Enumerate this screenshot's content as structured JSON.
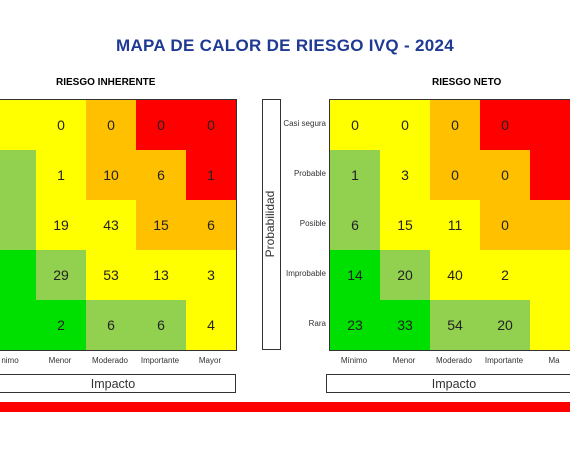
{
  "title": "MAPA DE CALOR DE RIESGO IVQ - 2024",
  "colors": {
    "green": "#00e000",
    "lightgreen": "#92d050",
    "yellow": "#ffff00",
    "orange": "#ffc000",
    "red": "#ff0000",
    "title": "#1f3a93",
    "bar": "#ff0000"
  },
  "chart_data": [
    {
      "type": "heatmap",
      "title": "RIESGO INHERENTE",
      "xlabel": "Impacto",
      "ylabel": "",
      "x_categories": [
        "Mínimo",
        "Menor",
        "Moderado",
        "Importante",
        "Mayor"
      ],
      "x_labels_visible": [
        "nimo",
        "Menor",
        "Moderado",
        "Importante",
        "Mayor"
      ],
      "y_categories": [
        "Casi segura",
        "Probable",
        "Posible",
        "Improbable",
        "Rara"
      ],
      "values": [
        [
          "",
          "0",
          "0",
          "0",
          "0"
        ],
        [
          "",
          "1",
          "10",
          "6",
          "1"
        ],
        [
          "",
          "19",
          "43",
          "15",
          "6"
        ],
        [
          "",
          "29",
          "53",
          "13",
          "3"
        ],
        [
          "",
          "2",
          "6",
          "6",
          "4"
        ]
      ],
      "colors": [
        [
          "yellow",
          "yellow",
          "orange",
          "red",
          "red"
        ],
        [
          "lightgreen",
          "yellow",
          "orange",
          "orange",
          "red"
        ],
        [
          "lightgreen",
          "yellow",
          "yellow",
          "orange",
          "orange"
        ],
        [
          "green",
          "lightgreen",
          "yellow",
          "yellow",
          "yellow"
        ],
        [
          "green",
          "green",
          "lightgreen",
          "lightgreen",
          "yellow"
        ]
      ]
    },
    {
      "type": "heatmap",
      "title": "RIESGO NETO",
      "xlabel": "Impacto",
      "ylabel": "Probabilidad",
      "x_categories": [
        "Mínimo",
        "Menor",
        "Moderado",
        "Importante",
        "Mayor"
      ],
      "x_labels_visible": [
        "Mínimo",
        "Menor",
        "Moderado",
        "Importante",
        "Ma"
      ],
      "y_categories": [
        "Casi segura",
        "Probable",
        "Posible",
        "Improbable",
        "Rara"
      ],
      "values": [
        [
          "0",
          "0",
          "0",
          "0",
          ""
        ],
        [
          "1",
          "3",
          "0",
          "0",
          ""
        ],
        [
          "6",
          "15",
          "11",
          "0",
          ""
        ],
        [
          "14",
          "20",
          "40",
          "2",
          ""
        ],
        [
          "23",
          "33",
          "54",
          "20",
          ""
        ]
      ],
      "colors": [
        [
          "yellow",
          "yellow",
          "orange",
          "red",
          "red"
        ],
        [
          "lightgreen",
          "yellow",
          "orange",
          "orange",
          "red"
        ],
        [
          "lightgreen",
          "yellow",
          "yellow",
          "orange",
          "orange"
        ],
        [
          "green",
          "lightgreen",
          "yellow",
          "yellow",
          "yellow"
        ],
        [
          "green",
          "green",
          "lightgreen",
          "lightgreen",
          "yellow"
        ]
      ]
    }
  ]
}
